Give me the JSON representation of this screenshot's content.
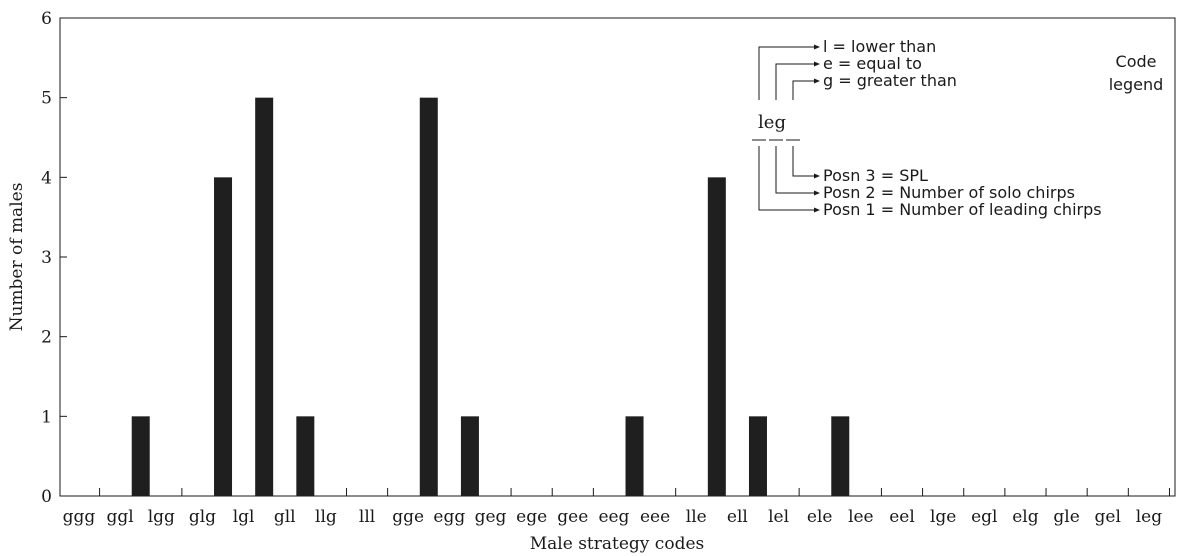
{
  "chart_data": {
    "type": "bar",
    "categories": [
      "ggg",
      "ggl",
      "lgg",
      "glg",
      "lgl",
      "gll",
      "llg",
      "lll",
      "gge",
      "egg",
      "geg",
      "ege",
      "gee",
      "eeg",
      "eee",
      "lle",
      "ell",
      "lel",
      "ele",
      "lee",
      "eel",
      "lge",
      "egl",
      "elg",
      "gle",
      "gel",
      "leg"
    ],
    "values": [
      0,
      1,
      0,
      4,
      5,
      1,
      0,
      0,
      5,
      1,
      0,
      0,
      0,
      1,
      0,
      4,
      1,
      0,
      1,
      0,
      0,
      0,
      0,
      0,
      0,
      0,
      0
    ],
    "xlabel": "Male strategy codes",
    "ylabel": "Number of males",
    "ylim": [
      0,
      6
    ],
    "yticks": [
      "0",
      "1",
      "2",
      "3",
      "4",
      "5",
      "6"
    ],
    "grid": false,
    "legend": {
      "position": "top-right",
      "title_line1": "Code",
      "title_line2": "legend",
      "example_code": "leg",
      "value_meanings": [
        "l = lower than",
        "e = equal to",
        "g = greater than"
      ],
      "positions": [
        "Posn 3 = SPL",
        "Posn 2 = Number of solo chirps",
        "Posn 1 = Number of leading chirps"
      ]
    }
  }
}
